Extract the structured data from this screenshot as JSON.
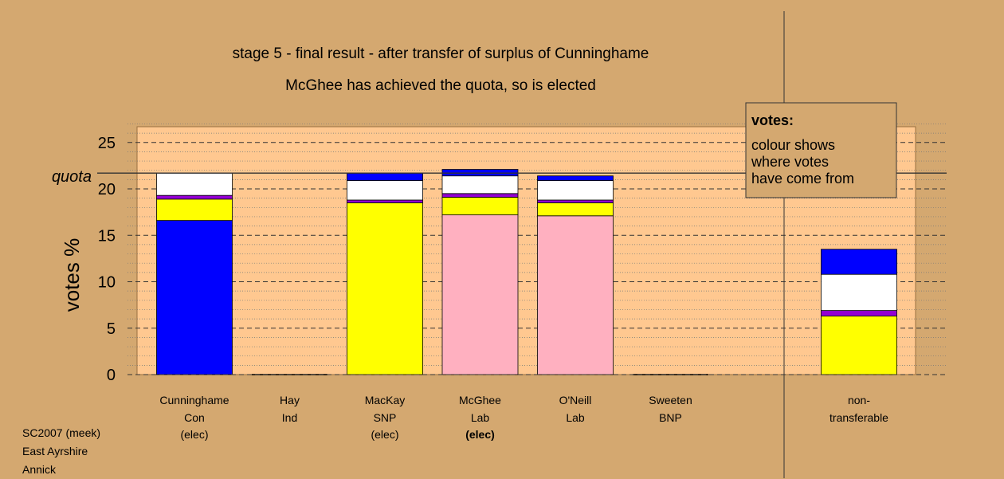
{
  "chart_data": {
    "type": "bar",
    "title": "stage 5 - final result - after transfer of surplus of Cunninghame",
    "subtitle": "McGhee has achieved the quota, so is elected",
    "ylabel": "votes %",
    "ylim": [
      0,
      27
    ],
    "yticks": [
      0,
      5,
      10,
      15,
      20,
      25
    ],
    "quota": 21.7,
    "quota_label": "quota",
    "colors": {
      "Con": "#0000ff",
      "SNP": "#ffff00",
      "Lab": "#ffb0c0",
      "Ind": "#9400d3",
      "transferred": "#ffffff",
      "background": "#d4a870",
      "panel": "#ffc890"
    },
    "candidates": [
      {
        "name": "Cunninghame",
        "party": "Con",
        "status": "(elec)",
        "status_bold": false,
        "segments": [
          {
            "source": "Con",
            "value": 16.6
          },
          {
            "source": "SNP",
            "value": 2.3
          },
          {
            "source": "Ind",
            "value": 0.4
          },
          {
            "source": "transferred",
            "value": 2.4
          }
        ]
      },
      {
        "name": "Hay",
        "party": "Ind",
        "status": "",
        "status_bold": false,
        "segments": []
      },
      {
        "name": "MacKay",
        "party": "SNP",
        "status": "(elec)",
        "status_bold": false,
        "segments": [
          {
            "source": "SNP",
            "value": 18.5
          },
          {
            "source": "Ind",
            "value": 0.3
          },
          {
            "source": "transferred",
            "value": 2.1
          },
          {
            "source": "Con",
            "value": 0.8
          }
        ]
      },
      {
        "name": "McGhee",
        "party": "Lab",
        "status": "(elec)",
        "status_bold": true,
        "segments": [
          {
            "source": "Lab",
            "value": 17.2
          },
          {
            "source": "SNP",
            "value": 1.9
          },
          {
            "source": "Ind",
            "value": 0.4
          },
          {
            "source": "transferred",
            "value": 1.9
          },
          {
            "source": "Con",
            "value": 0.7
          }
        ]
      },
      {
        "name": "O'Neill",
        "party": "Lab",
        "status": "",
        "status_bold": false,
        "segments": [
          {
            "source": "Lab",
            "value": 17.1
          },
          {
            "source": "SNP",
            "value": 1.4
          },
          {
            "source": "Ind",
            "value": 0.3
          },
          {
            "source": "transferred",
            "value": 2.1
          },
          {
            "source": "Con",
            "value": 0.5
          }
        ]
      },
      {
        "name": "Sweeten",
        "party": "BNP",
        "status": "",
        "status_bold": false,
        "segments": []
      }
    ],
    "nontransferable": {
      "label_line1": "non-",
      "label_line2": "transferable",
      "segments": [
        {
          "source": "SNP",
          "value": 6.3
        },
        {
          "source": "Ind",
          "value": 0.6
        },
        {
          "source": "transferred",
          "value": 3.9
        },
        {
          "source": "Con",
          "value": 2.7
        }
      ]
    },
    "legend": {
      "title": "votes:",
      "lines": [
        "colour shows",
        "where votes",
        "have come from"
      ]
    }
  },
  "footer": {
    "line1": "SC2007 (meek)",
    "line2": "East Ayrshire",
    "line3": "Annick"
  }
}
